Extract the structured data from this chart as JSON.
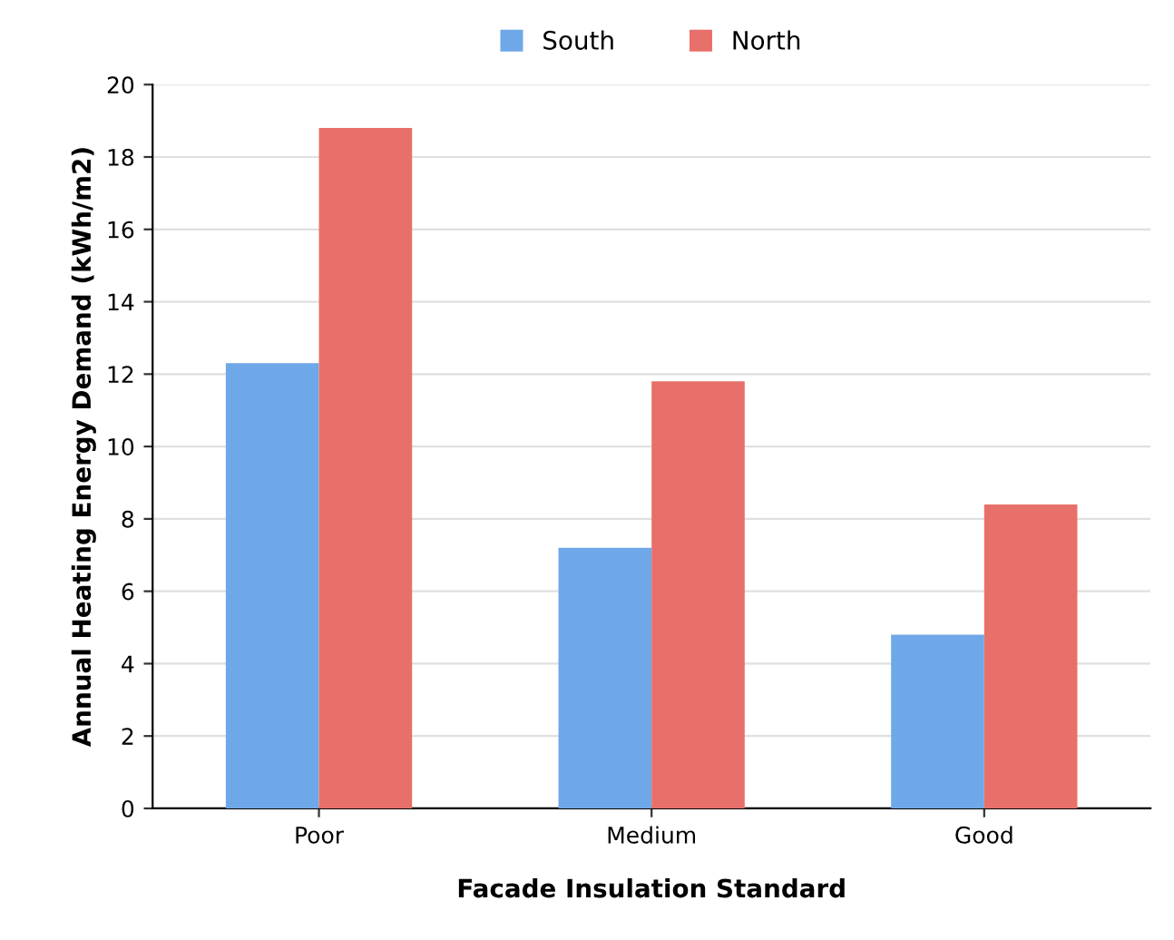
{
  "chart_data": {
    "type": "bar",
    "xlabel": "Facade Insulation Standard",
    "ylabel": "Annual Heating Energy Demand (kWh/m2)",
    "categories": [
      "Poor",
      "Medium",
      "Good"
    ],
    "series": [
      {
        "name": "South",
        "color": "#6fa8e8",
        "values": [
          12.3,
          7.2,
          4.8
        ]
      },
      {
        "name": "North",
        "color": "#e8706a",
        "values": [
          18.8,
          11.8,
          8.4
        ]
      }
    ],
    "ylim": [
      0,
      20
    ],
    "yticks": [
      0,
      2,
      4,
      6,
      8,
      10,
      12,
      14,
      16,
      18,
      20
    ],
    "grid": "y",
    "legend": "top"
  }
}
